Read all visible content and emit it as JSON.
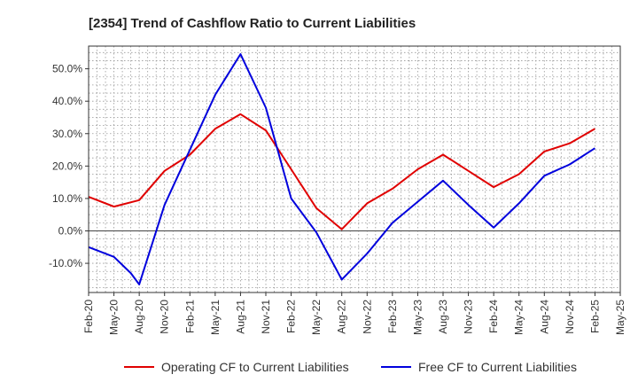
{
  "chart_data": {
    "type": "line",
    "title": "[2354]  Trend of Cashflow Ratio to Current Liabilities",
    "xlabel": "",
    "ylabel": "",
    "x": [
      "Feb-20",
      "May-20",
      "Aug-20",
      "Nov-20",
      "Feb-21",
      "May-21",
      "Aug-21",
      "Nov-21",
      "Feb-22",
      "May-22",
      "Aug-22",
      "Nov-22",
      "Feb-23",
      "May-23",
      "Aug-23",
      "Nov-23",
      "Feb-24",
      "May-24",
      "Aug-24",
      "Nov-24",
      "Feb-25",
      "May-25"
    ],
    "x_step_ticks": 3,
    "ylim": [
      -19,
      57
    ],
    "yticks": [
      -10,
      0,
      10,
      20,
      30,
      40,
      50
    ],
    "ytick_labels": [
      "-10.0%",
      "0.0%",
      "10.0%",
      "20.0%",
      "30.0%",
      "40.0%",
      "50.0%"
    ],
    "grid": true,
    "legend_position": "bottom",
    "series": [
      {
        "name": "Operating CF to Current Liabilities",
        "color": "#e00000",
        "points": [
          [
            0,
            10.5
          ],
          [
            3,
            7.5
          ],
          [
            6,
            9.5
          ],
          [
            9,
            18.5
          ],
          [
            12,
            23.5
          ],
          [
            15,
            31.5
          ],
          [
            18,
            36
          ],
          [
            21,
            31
          ],
          [
            24,
            19
          ],
          [
            27,
            7
          ],
          [
            30,
            0.5
          ],
          [
            33,
            8.5
          ],
          [
            36,
            13
          ],
          [
            39,
            19
          ],
          [
            42,
            23.5
          ],
          [
            45,
            18.5
          ],
          [
            48,
            13.5
          ],
          [
            51,
            17.5
          ],
          [
            54,
            24.5
          ],
          [
            57,
            27
          ],
          [
            60,
            31.5
          ]
        ]
      },
      {
        "name": "Free CF to Current Liabilities",
        "color": "#0000dd",
        "points": [
          [
            0,
            -5
          ],
          [
            3,
            -8
          ],
          [
            5,
            -13
          ],
          [
            6,
            -16.5
          ],
          [
            9,
            8
          ],
          [
            12,
            25
          ],
          [
            15,
            42
          ],
          [
            18,
            54.5
          ],
          [
            21,
            38
          ],
          [
            24,
            10
          ],
          [
            27,
            -0.5
          ],
          [
            30,
            -15
          ],
          [
            33,
            -7
          ],
          [
            36,
            2.5
          ],
          [
            39,
            9
          ],
          [
            42,
            15.5
          ],
          [
            45,
            8
          ],
          [
            48,
            1
          ],
          [
            51,
            8.5
          ],
          [
            54,
            17
          ],
          [
            57,
            20.5
          ],
          [
            60,
            25.5
          ]
        ]
      }
    ]
  }
}
